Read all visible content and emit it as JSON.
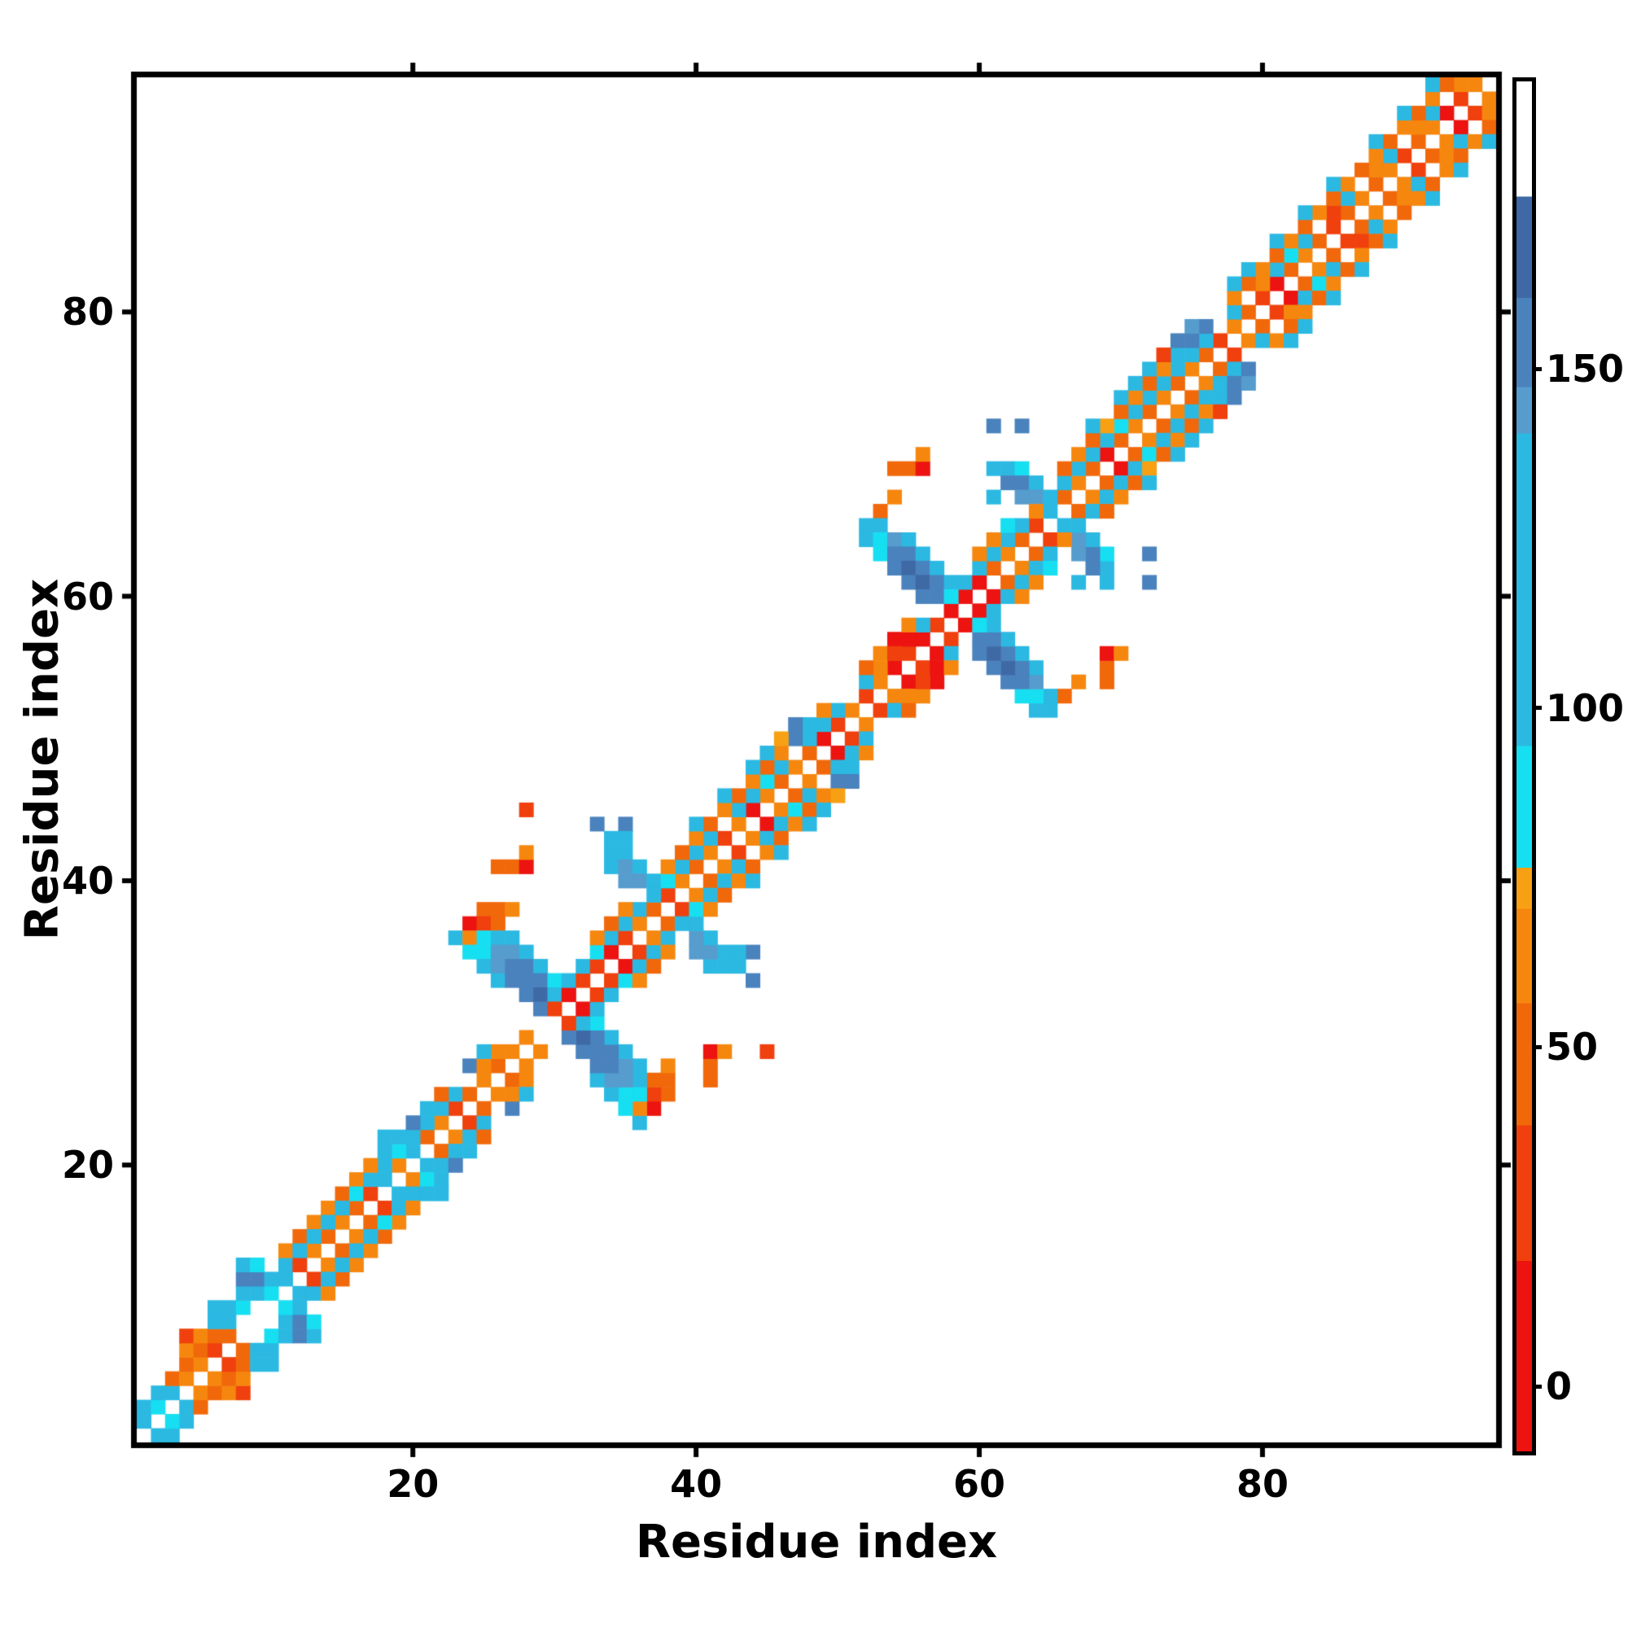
{
  "chart_data": {
    "type": "heatmap",
    "title": "",
    "xlabel": "Residue index",
    "ylabel": "Residue index",
    "x_ticks": [
      20,
      40,
      60,
      80
    ],
    "y_ticks": [
      20,
      40,
      60,
      80
    ],
    "n_residues": 96,
    "axis_range": [
      1,
      96
    ],
    "grid": false,
    "symmetric": true,
    "background": "#ffffff",
    "colorbar": {
      "ticks": [
        0,
        50,
        100,
        150
      ],
      "vmin": -9,
      "vmax": 193,
      "bands": [
        {
          "max": 19,
          "color": "#EC1310"
        },
        {
          "max": 39,
          "color": "#F0400D"
        },
        {
          "max": 57,
          "color": "#F1680A"
        },
        {
          "max": 71,
          "color": "#F6870E"
        },
        {
          "max": 77,
          "color": "#F8A013"
        },
        {
          "max": 95,
          "color": "#17DFF2"
        },
        {
          "max": 141,
          "color": "#2BB9E2"
        },
        {
          "max": 148,
          "color": "#569CCD"
        },
        {
          "max": 161,
          "color": "#4A82BD"
        },
        {
          "max": 176,
          "color": "#3E69A5"
        },
        {
          "max": 193,
          "color": "#FFFFFF"
        }
      ]
    },
    "cells": [
      [
        1,
        2,
        112
      ],
      [
        1,
        3,
        112
      ],
      [
        2,
        3,
        86
      ],
      [
        2,
        4,
        112
      ],
      [
        3,
        4,
        112
      ],
      [
        3,
        5,
        48
      ],
      [
        4,
        5,
        66
      ],
      [
        4,
        6,
        48
      ],
      [
        5,
        6,
        66
      ],
      [
        4,
        7,
        66
      ],
      [
        4,
        8,
        30
      ],
      [
        5,
        7,
        48
      ],
      [
        5,
        8,
        66
      ],
      [
        6,
        7,
        30
      ],
      [
        6,
        8,
        48
      ],
      [
        7,
        8,
        48
      ],
      [
        6,
        9,
        112
      ],
      [
        7,
        9,
        112
      ],
      [
        6,
        10,
        112
      ],
      [
        7,
        10,
        112
      ],
      [
        8,
        10,
        86
      ],
      [
        8,
        11,
        112
      ],
      [
        9,
        11,
        112
      ],
      [
        10,
        11,
        86
      ],
      [
        8,
        12,
        155
      ],
      [
        9,
        12,
        155
      ],
      [
        10,
        12,
        112
      ],
      [
        8,
        13,
        112
      ],
      [
        9,
        13,
        86
      ],
      [
        11,
        12,
        112
      ],
      [
        11,
        13,
        112
      ],
      [
        12,
        13,
        30
      ],
      [
        13,
        14,
        66
      ],
      [
        14,
        15,
        48
      ],
      [
        15,
        16,
        66
      ],
      [
        16,
        17,
        48
      ],
      [
        11,
        14,
        66
      ],
      [
        12,
        15,
        48
      ],
      [
        13,
        16,
        66
      ],
      [
        14,
        17,
        66
      ],
      [
        15,
        18,
        48
      ],
      [
        16,
        19,
        66
      ],
      [
        12,
        14,
        112
      ],
      [
        13,
        15,
        112
      ],
      [
        14,
        16,
        112
      ],
      [
        15,
        17,
        112
      ],
      [
        16,
        18,
        86
      ],
      [
        17,
        18,
        30
      ],
      [
        18,
        19,
        112
      ],
      [
        19,
        20,
        66
      ],
      [
        20,
        21,
        112
      ],
      [
        21,
        22,
        48
      ],
      [
        22,
        23,
        66
      ],
      [
        23,
        24,
        30
      ],
      [
        17,
        19,
        112
      ],
      [
        18,
        20,
        112
      ],
      [
        19,
        21,
        86
      ],
      [
        20,
        22,
        112
      ],
      [
        21,
        23,
        112
      ],
      [
        22,
        24,
        112
      ],
      [
        23,
        25,
        112
      ],
      [
        17,
        20,
        66
      ],
      [
        18,
        21,
        112
      ],
      [
        19,
        22,
        112
      ],
      [
        20,
        23,
        155
      ],
      [
        21,
        24,
        112
      ],
      [
        22,
        25,
        48
      ],
      [
        18,
        22,
        112
      ],
      [
        24,
        27,
        155
      ],
      [
        24,
        25,
        48
      ],
      [
        25,
        26,
        66
      ],
      [
        26,
        27,
        48
      ],
      [
        27,
        28,
        66
      ],
      [
        25,
        27,
        66
      ],
      [
        26,
        28,
        66
      ],
      [
        25,
        28,
        112
      ],
      [
        28,
        29,
        66
      ],
      [
        25,
        38,
        48
      ],
      [
        26,
        38,
        48
      ],
      [
        27,
        38,
        66
      ],
      [
        24,
        37,
        5
      ],
      [
        25,
        37,
        30
      ],
      [
        26,
        37,
        48
      ],
      [
        23,
        36,
        112
      ],
      [
        24,
        36,
        66
      ],
      [
        25,
        36,
        86
      ],
      [
        26,
        36,
        112
      ],
      [
        27,
        36,
        112
      ],
      [
        24,
        35,
        86
      ],
      [
        25,
        35,
        86
      ],
      [
        26,
        35,
        144
      ],
      [
        27,
        35,
        144
      ],
      [
        28,
        35,
        112
      ],
      [
        25,
        34,
        112
      ],
      [
        26,
        34,
        144
      ],
      [
        27,
        34,
        155
      ],
      [
        28,
        34,
        155
      ],
      [
        29,
        34,
        112
      ],
      [
        26,
        33,
        112
      ],
      [
        27,
        33,
        155
      ],
      [
        28,
        33,
        155
      ],
      [
        29,
        33,
        155
      ],
      [
        30,
        33,
        86
      ],
      [
        28,
        32,
        155
      ],
      [
        29,
        32,
        168
      ],
      [
        30,
        32,
        112
      ],
      [
        29,
        31,
        155
      ],
      [
        30,
        31,
        30
      ],
      [
        31,
        32,
        5
      ],
      [
        31,
        33,
        112
      ],
      [
        32,
        33,
        30
      ],
      [
        32,
        34,
        112
      ],
      [
        33,
        34,
        30
      ],
      [
        33,
        35,
        86
      ],
      [
        34,
        35,
        5
      ],
      [
        34,
        36,
        112
      ],
      [
        35,
        36,
        30
      ],
      [
        35,
        37,
        112
      ],
      [
        36,
        37,
        66
      ],
      [
        36,
        38,
        112
      ],
      [
        37,
        38,
        48
      ],
      [
        33,
        36,
        66
      ],
      [
        34,
        37,
        48
      ],
      [
        35,
        38,
        66
      ],
      [
        33,
        44,
        155
      ],
      [
        35,
        44,
        155
      ],
      [
        34,
        43,
        112
      ],
      [
        35,
        43,
        112
      ],
      [
        34,
        42,
        112
      ],
      [
        35,
        42,
        112
      ],
      [
        34,
        41,
        112
      ],
      [
        35,
        41,
        144
      ],
      [
        36,
        41,
        112
      ],
      [
        35,
        40,
        144
      ],
      [
        36,
        40,
        144
      ],
      [
        37,
        40,
        112
      ],
      [
        26,
        41,
        48
      ],
      [
        27,
        41,
        48
      ],
      [
        28,
        41,
        5
      ],
      [
        28,
        42,
        66
      ],
      [
        28,
        45,
        30
      ],
      [
        38,
        39,
        30
      ],
      [
        39,
        40,
        66
      ],
      [
        40,
        41,
        48
      ],
      [
        41,
        42,
        66
      ],
      [
        42,
        43,
        30
      ],
      [
        43,
        44,
        66
      ],
      [
        44,
        45,
        5
      ],
      [
        45,
        46,
        66
      ],
      [
        46,
        47,
        48
      ],
      [
        47,
        48,
        66
      ],
      [
        48,
        49,
        48
      ],
      [
        49,
        50,
        5
      ],
      [
        50,
        51,
        30
      ],
      [
        51,
        52,
        66
      ],
      [
        37,
        39,
        112
      ],
      [
        38,
        40,
        86
      ],
      [
        39,
        41,
        112
      ],
      [
        40,
        42,
        112
      ],
      [
        41,
        43,
        112
      ],
      [
        43,
        45,
        112
      ],
      [
        44,
        46,
        112
      ],
      [
        45,
        47,
        86
      ],
      [
        46,
        48,
        112
      ],
      [
        48,
        50,
        112
      ],
      [
        49,
        51,
        112
      ],
      [
        50,
        52,
        112
      ],
      [
        38,
        41,
        66
      ],
      [
        39,
        42,
        48
      ],
      [
        40,
        43,
        66
      ],
      [
        41,
        44,
        48
      ],
      [
        42,
        45,
        66
      ],
      [
        43,
        46,
        48
      ],
      [
        44,
        47,
        66
      ],
      [
        45,
        48,
        48
      ],
      [
        46,
        49,
        66
      ],
      [
        47,
        50,
        155
      ],
      [
        48,
        51,
        112
      ],
      [
        49,
        52,
        66
      ],
      [
        40,
        44,
        112
      ],
      [
        42,
        46,
        112
      ],
      [
        44,
        48,
        112
      ],
      [
        45,
        49,
        112
      ],
      [
        46,
        50,
        74
      ],
      [
        47,
        51,
        155
      ],
      [
        52,
        53,
        30
      ],
      [
        53,
        54,
        66
      ],
      [
        54,
        55,
        5
      ],
      [
        55,
        56,
        30
      ],
      [
        56,
        57,
        5
      ],
      [
        57,
        58,
        30
      ],
      [
        58,
        59,
        5
      ],
      [
        59,
        60,
        5
      ],
      [
        52,
        54,
        112
      ],
      [
        53,
        55,
        66
      ],
      [
        55,
        57,
        5
      ],
      [
        56,
        58,
        112
      ],
      [
        52,
        55,
        48
      ],
      [
        53,
        56,
        66
      ],
      [
        54,
        57,
        5
      ],
      [
        55,
        58,
        66
      ],
      [
        54,
        56,
        30
      ],
      [
        53,
        66,
        48
      ],
      [
        54,
        67,
        66
      ],
      [
        54,
        69,
        48
      ],
      [
        55,
        69,
        48
      ],
      [
        56,
        69,
        5
      ],
      [
        56,
        70,
        66
      ],
      [
        52,
        65,
        112
      ],
      [
        53,
        65,
        112
      ],
      [
        52,
        64,
        112
      ],
      [
        53,
        64,
        86
      ],
      [
        54,
        64,
        144
      ],
      [
        55,
        64,
        112
      ],
      [
        53,
        63,
        86
      ],
      [
        54,
        63,
        155
      ],
      [
        55,
        63,
        155
      ],
      [
        56,
        63,
        112
      ],
      [
        54,
        62,
        155
      ],
      [
        55,
        62,
        168
      ],
      [
        56,
        62,
        155
      ],
      [
        57,
        62,
        112
      ],
      [
        55,
        61,
        155
      ],
      [
        56,
        61,
        168
      ],
      [
        57,
        61,
        155
      ],
      [
        58,
        61,
        112
      ],
      [
        56,
        60,
        155
      ],
      [
        57,
        60,
        155
      ],
      [
        58,
        60,
        86
      ],
      [
        59,
        61,
        112
      ],
      [
        60,
        61,
        5
      ],
      [
        61,
        62,
        48
      ],
      [
        62,
        63,
        66
      ],
      [
        63,
        64,
        48
      ],
      [
        64,
        65,
        30
      ],
      [
        65,
        66,
        112
      ],
      [
        66,
        67,
        48
      ],
      [
        60,
        62,
        112
      ],
      [
        61,
        63,
        112
      ],
      [
        62,
        64,
        112
      ],
      [
        63,
        65,
        112
      ],
      [
        60,
        63,
        66
      ],
      [
        61,
        64,
        66
      ],
      [
        62,
        65,
        86
      ],
      [
        61,
        69,
        112
      ],
      [
        62,
        69,
        112
      ],
      [
        63,
        69,
        86
      ],
      [
        62,
        68,
        155
      ],
      [
        63,
        68,
        155
      ],
      [
        64,
        68,
        112
      ],
      [
        63,
        67,
        144
      ],
      [
        64,
        67,
        144
      ],
      [
        65,
        67,
        112
      ],
      [
        64,
        66,
        66
      ],
      [
        61,
        67,
        112
      ],
      [
        61,
        72,
        155
      ],
      [
        63,
        72,
        155
      ],
      [
        67,
        68,
        66
      ],
      [
        68,
        69,
        48
      ],
      [
        69,
        70,
        5
      ],
      [
        70,
        71,
        48
      ],
      [
        71,
        72,
        66
      ],
      [
        72,
        73,
        48
      ],
      [
        73,
        74,
        66
      ],
      [
        74,
        75,
        48
      ],
      [
        75,
        76,
        66
      ],
      [
        76,
        77,
        48
      ],
      [
        77,
        78,
        30
      ],
      [
        66,
        68,
        112
      ],
      [
        67,
        69,
        112
      ],
      [
        68,
        70,
        112
      ],
      [
        69,
        71,
        112
      ],
      [
        70,
        72,
        86
      ],
      [
        71,
        73,
        112
      ],
      [
        72,
        74,
        112
      ],
      [
        73,
        75,
        112
      ],
      [
        74,
        76,
        112
      ],
      [
        75,
        77,
        112
      ],
      [
        76,
        78,
        112
      ],
      [
        66,
        69,
        48
      ],
      [
        67,
        70,
        66
      ],
      [
        68,
        71,
        48
      ],
      [
        69,
        72,
        74
      ],
      [
        70,
        73,
        48
      ],
      [
        71,
        74,
        66
      ],
      [
        72,
        75,
        48
      ],
      [
        73,
        76,
        66
      ],
      [
        74,
        77,
        112
      ],
      [
        75,
        78,
        155
      ],
      [
        76,
        79,
        155
      ],
      [
        68,
        72,
        112
      ],
      [
        70,
        74,
        112
      ],
      [
        71,
        75,
        112
      ],
      [
        72,
        76,
        112
      ],
      [
        73,
        77,
        30
      ],
      [
        74,
        78,
        155
      ],
      [
        75,
        79,
        144
      ],
      [
        78,
        79,
        66
      ],
      [
        79,
        80,
        48
      ],
      [
        80,
        81,
        30
      ],
      [
        81,
        82,
        5
      ],
      [
        82,
        83,
        48
      ],
      [
        83,
        84,
        66
      ],
      [
        84,
        85,
        48
      ],
      [
        85,
        86,
        30
      ],
      [
        86,
        87,
        48
      ],
      [
        87,
        88,
        66
      ],
      [
        88,
        89,
        48
      ],
      [
        89,
        90,
        66
      ],
      [
        90,
        91,
        30
      ],
      [
        91,
        92,
        48
      ],
      [
        92,
        93,
        66
      ],
      [
        93,
        94,
        5
      ],
      [
        94,
        95,
        30
      ],
      [
        95,
        96,
        66
      ],
      [
        78,
        80,
        112
      ],
      [
        80,
        82,
        66
      ],
      [
        81,
        83,
        112
      ],
      [
        82,
        84,
        86
      ],
      [
        83,
        85,
        112
      ],
      [
        85,
        87,
        30
      ],
      [
        86,
        88,
        112
      ],
      [
        88,
        90,
        66
      ],
      [
        89,
        91,
        112
      ],
      [
        91,
        93,
        66
      ],
      [
        92,
        94,
        112
      ],
      [
        94,
        96,
        66
      ],
      [
        78,
        81,
        66
      ],
      [
        79,
        82,
        48
      ],
      [
        80,
        83,
        66
      ],
      [
        81,
        84,
        48
      ],
      [
        82,
        85,
        66
      ],
      [
        83,
        86,
        48
      ],
      [
        84,
        87,
        66
      ],
      [
        85,
        88,
        48
      ],
      [
        86,
        89,
        66
      ],
      [
        87,
        90,
        48
      ],
      [
        88,
        91,
        66
      ],
      [
        89,
        92,
        48
      ],
      [
        90,
        93,
        66
      ],
      [
        91,
        94,
        48
      ],
      [
        92,
        95,
        66
      ],
      [
        93,
        96,
        48
      ],
      [
        78,
        82,
        112
      ],
      [
        79,
        83,
        112
      ],
      [
        81,
        85,
        112
      ],
      [
        83,
        87,
        112
      ],
      [
        85,
        89,
        112
      ],
      [
        88,
        92,
        112
      ],
      [
        90,
        94,
        112
      ],
      [
        92,
        96,
        112
      ]
    ]
  }
}
